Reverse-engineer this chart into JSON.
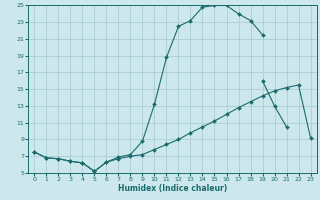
{
  "xlabel": "Humidex (Indice chaleur)",
  "bg_color": "#cce8ec",
  "grid_color": "#aacdd4",
  "line_color": "#1a6b6b",
  "xlim": [
    -0.5,
    23.5
  ],
  "ylim": [
    5,
    25
  ],
  "xticks": [
    0,
    1,
    2,
    3,
    4,
    5,
    6,
    7,
    8,
    9,
    10,
    11,
    12,
    13,
    14,
    15,
    16,
    17,
    18,
    19,
    20,
    21,
    22,
    23
  ],
  "yticks": [
    5,
    7,
    9,
    11,
    13,
    15,
    17,
    19,
    21,
    23,
    25
  ],
  "line1_x": [
    0,
    1,
    2,
    3,
    4,
    5,
    6,
    7,
    8,
    9,
    10,
    11,
    12,
    13,
    14,
    15,
    16,
    17,
    18,
    19,
    20,
    21,
    22,
    23
  ],
  "line1_y": [
    7.5,
    6.8,
    6.7,
    6.4,
    6.2,
    5.2,
    6.3,
    6.7,
    7.0,
    7.2,
    7.8,
    8.4,
    9.0,
    9.8,
    10.5,
    11.2,
    12.0,
    12.8,
    13.5,
    14.2,
    14.8,
    15.2,
    15.5,
    9.2
  ],
  "line2_x": [
    0,
    1,
    2,
    3,
    4,
    5,
    6,
    7,
    8,
    9,
    10,
    11,
    12,
    13,
    14,
    15,
    16,
    17,
    18,
    19
  ],
  "line2_y": [
    7.5,
    6.8,
    6.7,
    6.4,
    6.2,
    5.2,
    6.3,
    6.9,
    7.2,
    8.8,
    13.2,
    18.8,
    22.5,
    23.2,
    24.8,
    25.0,
    25.0,
    24.0,
    23.2,
    21.5
  ],
  "line3_x": [
    19,
    20,
    21
  ],
  "line3_y": [
    16.0,
    13.0,
    10.5
  ]
}
